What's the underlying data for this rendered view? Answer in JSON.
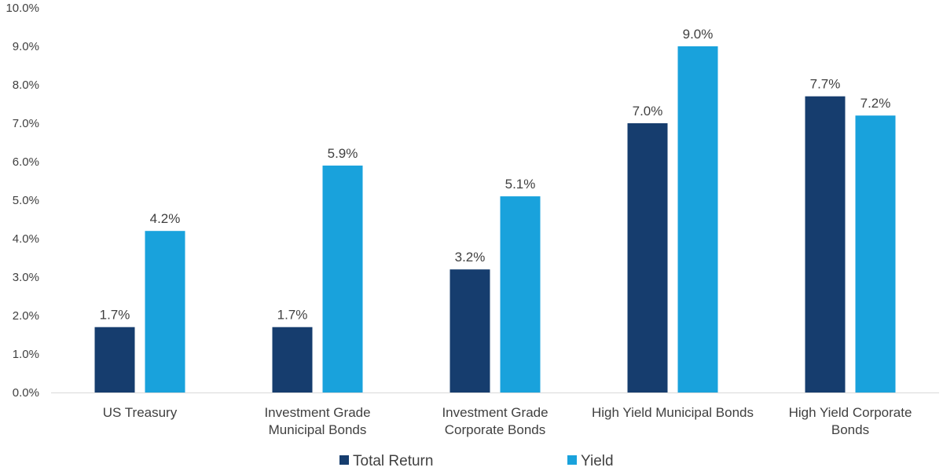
{
  "chart_data": {
    "type": "bar",
    "title": "",
    "xlabel": "",
    "ylabel": "",
    "ylim": [
      0,
      10
    ],
    "yticks": [
      "0.0%",
      "1.0%",
      "2.0%",
      "3.0%",
      "4.0%",
      "5.0%",
      "6.0%",
      "7.0%",
      "8.0%",
      "9.0%",
      "10.0%"
    ],
    "ytick_values": [
      0,
      1,
      2,
      3,
      4,
      5,
      6,
      7,
      8,
      9,
      10
    ],
    "grid": false,
    "legend_position": "bottom",
    "categories": [
      [
        "US Treasury"
      ],
      [
        "Investment Grade",
        "Municipal Bonds"
      ],
      [
        "Investment Grade",
        "Corporate Bonds"
      ],
      [
        "High Yield Municipal Bonds"
      ],
      [
        "High Yield Corporate",
        "Bonds"
      ]
    ],
    "series": [
      {
        "name": "Total Return",
        "color": "#163d6e",
        "values": [
          1.7,
          1.7,
          3.2,
          7.0,
          7.7
        ],
        "labels": [
          "1.7%",
          "1.7%",
          "3.2%",
          "7.0%",
          "7.7%"
        ]
      },
      {
        "name": "Yield",
        "color": "#19a2dc",
        "values": [
          4.2,
          5.9,
          5.1,
          9.0,
          7.2
        ],
        "labels": [
          "4.2%",
          "5.9%",
          "5.1%",
          "9.0%",
          "7.2%"
        ]
      }
    ]
  }
}
